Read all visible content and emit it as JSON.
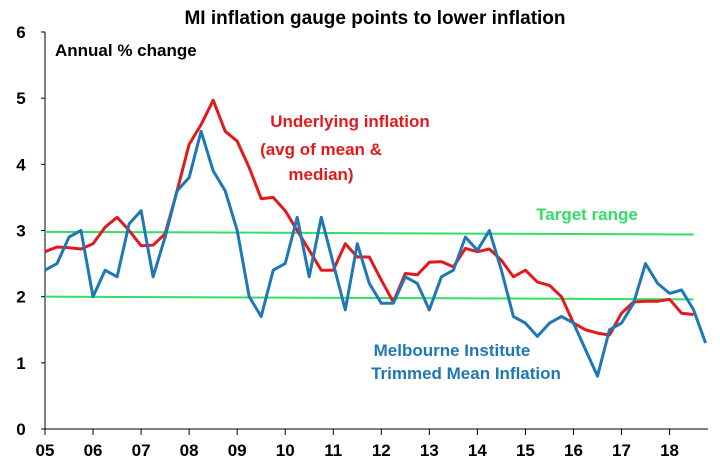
{
  "chart_data": {
    "type": "line",
    "title": "MI inflation gauge points to lower inflation",
    "unit_label": "Annual % change",
    "ylim": [
      0,
      6
    ],
    "yticks": [
      "0",
      "1",
      "2",
      "3",
      "4",
      "5",
      "6"
    ],
    "xlim": [
      2005,
      2018.8
    ],
    "xticks": [
      "05",
      "06",
      "07",
      "08",
      "09",
      "10",
      "11",
      "12",
      "13",
      "14",
      "15",
      "16",
      "17",
      "18"
    ],
    "grid": false,
    "series": [
      {
        "name": "Underlying inflation (avg of mean & median)",
        "label_lines": [
          "Underlying inflation",
          "(avg of mean &",
          "median)"
        ],
        "color": "#e31a1c",
        "points": [
          [
            2005.0,
            2.68
          ],
          [
            2005.25,
            2.75
          ],
          [
            2005.5,
            2.74
          ],
          [
            2005.75,
            2.72
          ],
          [
            2006.0,
            2.8
          ],
          [
            2006.25,
            3.05
          ],
          [
            2006.5,
            3.2
          ],
          [
            2006.75,
            3.0
          ],
          [
            2007.0,
            2.77
          ],
          [
            2007.25,
            2.78
          ],
          [
            2007.5,
            2.95
          ],
          [
            2007.75,
            3.6
          ],
          [
            2008.0,
            4.3
          ],
          [
            2008.25,
            4.6
          ],
          [
            2008.5,
            4.97
          ],
          [
            2008.75,
            4.5
          ],
          [
            2009.0,
            4.35
          ],
          [
            2009.25,
            3.95
          ],
          [
            2009.5,
            3.48
          ],
          [
            2009.75,
            3.5
          ],
          [
            2010.0,
            3.3
          ],
          [
            2010.25,
            3.0
          ],
          [
            2010.5,
            2.7
          ],
          [
            2010.75,
            2.4
          ],
          [
            2011.0,
            2.4
          ],
          [
            2011.25,
            2.8
          ],
          [
            2011.5,
            2.6
          ],
          [
            2011.75,
            2.6
          ],
          [
            2012.0,
            2.25
          ],
          [
            2012.25,
            1.92
          ],
          [
            2012.5,
            2.35
          ],
          [
            2012.75,
            2.33
          ],
          [
            2013.0,
            2.52
          ],
          [
            2013.25,
            2.53
          ],
          [
            2013.5,
            2.45
          ],
          [
            2013.75,
            2.73
          ],
          [
            2014.0,
            2.68
          ],
          [
            2014.25,
            2.72
          ],
          [
            2014.5,
            2.55
          ],
          [
            2014.75,
            2.3
          ],
          [
            2015.0,
            2.4
          ],
          [
            2015.25,
            2.22
          ],
          [
            2015.5,
            2.17
          ],
          [
            2015.75,
            2.0
          ],
          [
            2016.0,
            1.6
          ],
          [
            2016.25,
            1.5
          ],
          [
            2016.5,
            1.45
          ],
          [
            2016.75,
            1.42
          ],
          [
            2017.0,
            1.75
          ],
          [
            2017.25,
            1.92
          ],
          [
            2017.5,
            1.93
          ],
          [
            2017.75,
            1.93
          ],
          [
            2018.0,
            1.96
          ],
          [
            2018.25,
            1.75
          ],
          [
            2018.5,
            1.73
          ]
        ]
      },
      {
        "name": "Melbourne Institute Trimmed Mean Inflation",
        "label_lines": [
          "Melbourne Institute",
          "Trimmed Mean Inflation"
        ],
        "color": "#1f78b4",
        "points": [
          [
            2005.0,
            2.4
          ],
          [
            2005.25,
            2.5
          ],
          [
            2005.5,
            2.9
          ],
          [
            2005.75,
            3.0
          ],
          [
            2006.0,
            2.0
          ],
          [
            2006.25,
            2.4
          ],
          [
            2006.5,
            2.3
          ],
          [
            2006.75,
            3.1
          ],
          [
            2007.0,
            3.3
          ],
          [
            2007.25,
            2.3
          ],
          [
            2007.5,
            2.9
          ],
          [
            2007.75,
            3.6
          ],
          [
            2008.0,
            3.8
          ],
          [
            2008.25,
            4.5
          ],
          [
            2008.5,
            3.9
          ],
          [
            2008.75,
            3.6
          ],
          [
            2009.0,
            3.0
          ],
          [
            2009.25,
            2.0
          ],
          [
            2009.5,
            1.7
          ],
          [
            2009.75,
            2.4
          ],
          [
            2010.0,
            2.5
          ],
          [
            2010.25,
            3.2
          ],
          [
            2010.5,
            2.3
          ],
          [
            2010.75,
            3.2
          ],
          [
            2011.0,
            2.5
          ],
          [
            2011.25,
            1.8
          ],
          [
            2011.5,
            2.8
          ],
          [
            2011.75,
            2.2
          ],
          [
            2012.0,
            1.9
          ],
          [
            2012.25,
            1.9
          ],
          [
            2012.5,
            2.3
          ],
          [
            2012.75,
            2.2
          ],
          [
            2013.0,
            1.8
          ],
          [
            2013.25,
            2.3
          ],
          [
            2013.5,
            2.4
          ],
          [
            2013.75,
            2.9
          ],
          [
            2014.0,
            2.7
          ],
          [
            2014.25,
            3.0
          ],
          [
            2014.5,
            2.4
          ],
          [
            2014.75,
            1.7
          ],
          [
            2015.0,
            1.6
          ],
          [
            2015.25,
            1.4
          ],
          [
            2015.5,
            1.6
          ],
          [
            2015.75,
            1.7
          ],
          [
            2016.0,
            1.6
          ],
          [
            2016.25,
            1.2
          ],
          [
            2016.5,
            0.8
          ],
          [
            2016.75,
            1.5
          ],
          [
            2017.0,
            1.6
          ],
          [
            2017.25,
            1.9
          ],
          [
            2017.5,
            2.5
          ],
          [
            2017.75,
            2.2
          ],
          [
            2018.0,
            2.05
          ],
          [
            2018.25,
            2.1
          ],
          [
            2018.5,
            1.8
          ],
          [
            2018.75,
            1.3
          ]
        ]
      }
    ],
    "target_range": {
      "label": "Target range",
      "color": "#33dd66",
      "lines": [
        {
          "from": [
            2005.0,
            2.98
          ],
          "to": [
            2018.5,
            2.94
          ]
        },
        {
          "from": [
            2005.0,
            2.0
          ],
          "to": [
            2018.5,
            1.96
          ]
        }
      ]
    }
  }
}
